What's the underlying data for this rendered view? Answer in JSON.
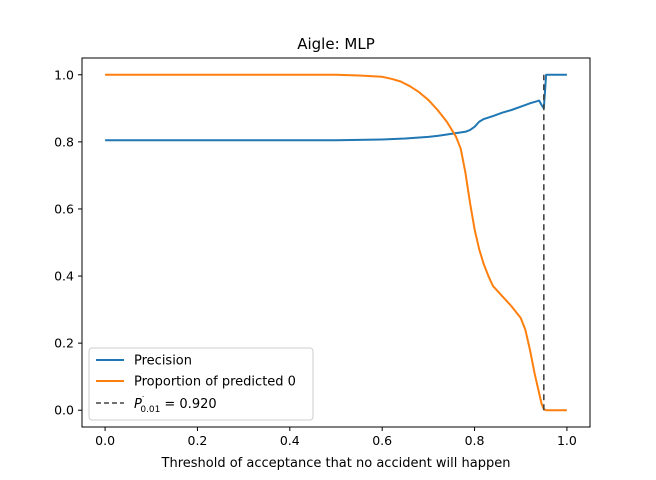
{
  "chart_data": {
    "type": "line",
    "title": "Aigle: MLP",
    "xlabel": "Threshold of acceptance that no accident will happen",
    "ylabel": "",
    "xlim": [
      -0.05,
      1.05
    ],
    "ylim": [
      -0.05,
      1.05
    ],
    "xticks": [
      0.0,
      0.2,
      0.4,
      0.6,
      0.8,
      1.0
    ],
    "xtick_labels": [
      "0.0",
      "0.2",
      "0.4",
      "0.6",
      "0.8",
      "1.0"
    ],
    "yticks": [
      0.0,
      0.2,
      0.4,
      0.6,
      0.8,
      1.0
    ],
    "ytick_labels": [
      "0.0",
      "0.2",
      "0.4",
      "0.6",
      "0.8",
      "1.0"
    ],
    "grid": false,
    "legend_position": "lower-left",
    "series": [
      {
        "name": "Precision",
        "color": "#1f77b4",
        "x": [
          0.0,
          0.1,
          0.2,
          0.3,
          0.4,
          0.5,
          0.55,
          0.6,
          0.65,
          0.7,
          0.72,
          0.74,
          0.76,
          0.78,
          0.79,
          0.8,
          0.81,
          0.82,
          0.84,
          0.86,
          0.88,
          0.9,
          0.92,
          0.94,
          0.945,
          0.95,
          0.955,
          0.96,
          0.97,
          0.98,
          0.99,
          1.0
        ],
        "y": [
          0.805,
          0.805,
          0.805,
          0.805,
          0.805,
          0.805,
          0.806,
          0.807,
          0.81,
          0.815,
          0.818,
          0.822,
          0.826,
          0.83,
          0.835,
          0.845,
          0.86,
          0.868,
          0.877,
          0.887,
          0.895,
          0.905,
          0.915,
          0.923,
          0.91,
          0.9,
          1.0,
          1.0,
          1.0,
          1.0,
          1.0,
          1.0
        ]
      },
      {
        "name": "Proportion of predicted 0",
        "color": "#ff7f0e",
        "x": [
          0.0,
          0.1,
          0.2,
          0.3,
          0.4,
          0.5,
          0.55,
          0.6,
          0.62,
          0.64,
          0.66,
          0.68,
          0.7,
          0.72,
          0.74,
          0.76,
          0.77,
          0.78,
          0.79,
          0.8,
          0.81,
          0.82,
          0.83,
          0.84,
          0.86,
          0.88,
          0.9,
          0.91,
          0.92,
          0.93,
          0.94,
          0.945,
          0.95,
          0.955,
          0.96,
          0.97,
          0.98,
          0.99,
          1.0
        ],
        "y": [
          1.0,
          1.0,
          1.0,
          1.0,
          1.0,
          1.0,
          0.998,
          0.994,
          0.988,
          0.98,
          0.966,
          0.948,
          0.925,
          0.895,
          0.86,
          0.815,
          0.78,
          0.71,
          0.62,
          0.54,
          0.48,
          0.435,
          0.4,
          0.37,
          0.34,
          0.31,
          0.275,
          0.24,
          0.18,
          0.11,
          0.05,
          0.02,
          0.003,
          0.0,
          0.0,
          0.0,
          0.0,
          0.0,
          0.0
        ]
      }
    ],
    "vline": {
      "x": 0.95,
      "ymin": 0.0,
      "ymax": 1.0,
      "color": "#444444",
      "style": "dashed",
      "legend_symbol": "P",
      "legend_subscript": "0.01",
      "legend_value_text": "= 0.920"
    }
  }
}
